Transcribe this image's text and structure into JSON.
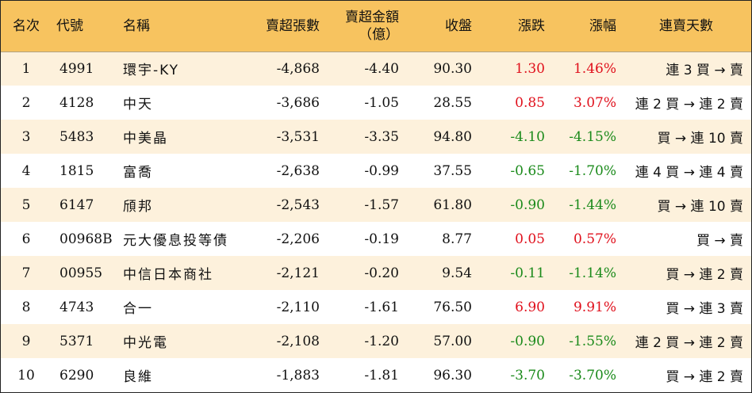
{
  "header": {
    "rank": "名次",
    "code": "代號",
    "name": "名稱",
    "net_sell_lots": "賣超張數",
    "net_sell_amount_line1": "賣超金額",
    "net_sell_amount_line2": "（億）",
    "close": "收盤",
    "change": "漲跌",
    "change_pct": "漲幅",
    "streak": "連賣天數"
  },
  "colors": {
    "header_bg": "#f7c35f",
    "odd_row_bg": "#fdf1dc",
    "up": "#e0101c",
    "down": "#1a8a1a"
  },
  "rows": [
    {
      "rank": "1",
      "code": "4991",
      "name": "環宇-KY",
      "lots": "-4,868",
      "amount": "-4.40",
      "close": "90.30",
      "change": "1.30",
      "pct": "1.46%",
      "dir": "up",
      "streak": "連 3 買 → 賣"
    },
    {
      "rank": "2",
      "code": "4128",
      "name": "中天",
      "lots": "-3,686",
      "amount": "-1.05",
      "close": "28.55",
      "change": "0.85",
      "pct": "3.07%",
      "dir": "up",
      "streak": "連 2 買 → 連 2 賣"
    },
    {
      "rank": "3",
      "code": "5483",
      "name": "中美晶",
      "lots": "-3,531",
      "amount": "-3.35",
      "close": "94.80",
      "change": "-4.10",
      "pct": "-4.15%",
      "dir": "down",
      "streak": "買 → 連 10 賣"
    },
    {
      "rank": "4",
      "code": "1815",
      "name": "富喬",
      "lots": "-2,638",
      "amount": "-0.99",
      "close": "37.55",
      "change": "-0.65",
      "pct": "-1.70%",
      "dir": "down",
      "streak": "連 4 買 → 連 4 賣"
    },
    {
      "rank": "5",
      "code": "6147",
      "name": "頎邦",
      "lots": "-2,543",
      "amount": "-1.57",
      "close": "61.80",
      "change": "-0.90",
      "pct": "-1.44%",
      "dir": "down",
      "streak": "買 → 連 10 賣"
    },
    {
      "rank": "6",
      "code": "00968B",
      "name": "元大優息投等債",
      "lots": "-2,206",
      "amount": "-0.19",
      "close": "8.77",
      "change": "0.05",
      "pct": "0.57%",
      "dir": "up",
      "streak": "買 → 賣"
    },
    {
      "rank": "7",
      "code": "00955",
      "name": "中信日本商社",
      "lots": "-2,121",
      "amount": "-0.20",
      "close": "9.54",
      "change": "-0.11",
      "pct": "-1.14%",
      "dir": "down",
      "streak": "買 → 連 2 賣"
    },
    {
      "rank": "8",
      "code": "4743",
      "name": "合一",
      "lots": "-2,110",
      "amount": "-1.61",
      "close": "76.50",
      "change": "6.90",
      "pct": "9.91%",
      "dir": "up",
      "streak": "買 → 連 3 賣"
    },
    {
      "rank": "9",
      "code": "5371",
      "name": "中光電",
      "lots": "-2,108",
      "amount": "-1.20",
      "close": "57.00",
      "change": "-0.90",
      "pct": "-1.55%",
      "dir": "down",
      "streak": "連 2 買 → 連 2 賣"
    },
    {
      "rank": "10",
      "code": "6290",
      "name": "良維",
      "lots": "-1,883",
      "amount": "-1.81",
      "close": "96.30",
      "change": "-3.70",
      "pct": "-3.70%",
      "dir": "down",
      "streak": "買 → 連 2 賣"
    }
  ]
}
